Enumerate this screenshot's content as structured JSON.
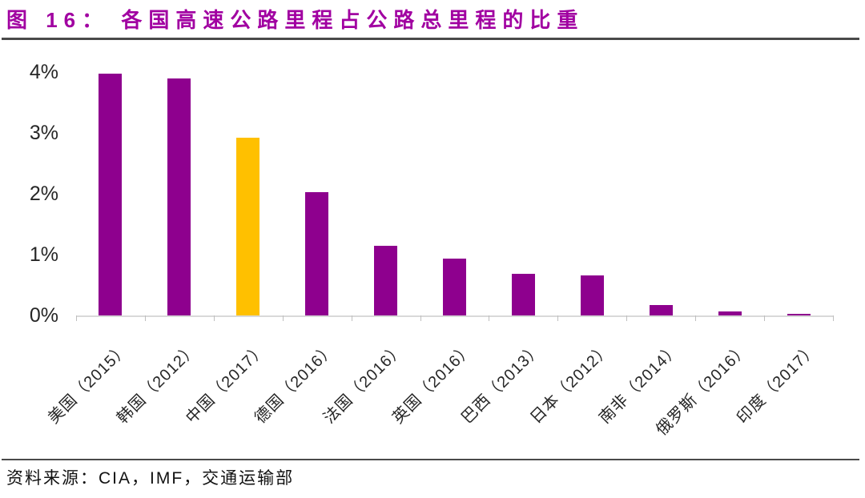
{
  "figure": {
    "title": "图 16： 各国高速公路里程占公路总里程的比重",
    "source": "资料来源：CIA，IMF，交通运输部"
  },
  "colors": {
    "title_text": "#A100A1",
    "bar": "#8E008E",
    "bar_highlight": "#FFC000",
    "axis_line": "#D9D9D9",
    "tick_mark": "#BFBFBF",
    "label_text": "#262626",
    "divider": "#4A4A4A"
  },
  "chart_data": {
    "type": "bar",
    "title": "各国高速公路里程占公路总里程的比重",
    "categories": [
      "美国（2015）",
      "韩国（2012）",
      "中国（2017）",
      "德国（2016）",
      "法国（2016）",
      "英国（2016）",
      "巴西（2013）",
      "日本（2012）",
      "南非（2014）",
      "俄罗斯（2016）",
      "印度（2017）"
    ],
    "values": [
      3.97,
      3.9,
      2.92,
      2.03,
      1.14,
      0.94,
      0.69,
      0.66,
      0.17,
      0.06,
      0.02
    ],
    "unit": "%",
    "highlight_index": 2,
    "highlight_category": "中国（2017）",
    "xlabel": "",
    "ylabel": "",
    "ylim": [
      0,
      4
    ],
    "yticks": [
      "0%",
      "1%",
      "2%",
      "3%",
      "4%"
    ],
    "grid": false,
    "legend": false
  }
}
